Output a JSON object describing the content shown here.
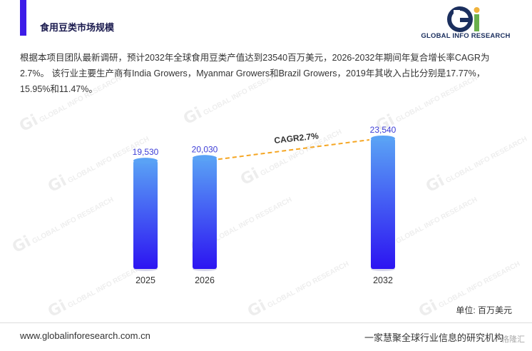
{
  "header": {
    "title": "食用豆类市场规模"
  },
  "logo": {
    "text": "GLOBAL INFO RESEARCH"
  },
  "description": "根据本项目团队最新调研，预计2032年全球食用豆类产值达到23540百万美元，2026-2032年期间年复合增长率CAGR为2.7%。 该行业主要生产商有India Growers，Myanmar Growers和Brazil Growers，2019年其收入占比分别是17.77%，15.95%和11.47%。",
  "colors": {
    "accent": "#3d1ce8",
    "bar_top": "#5aa2f5",
    "bar_bottom": "#2c14f2",
    "cagr_line": "#f5a623",
    "value_label": "#3d3dd6"
  },
  "chart_data": {
    "type": "bar",
    "categories": [
      "2025",
      "2026",
      "2032"
    ],
    "values": [
      19530,
      20030,
      23540
    ],
    "value_labels": [
      "19,530",
      "20,030",
      "23,540"
    ],
    "annotation": "CAGR2.7%",
    "unit": "单位: 百万美元",
    "ylim": [
      0,
      23540
    ],
    "grid": false,
    "legend": "none"
  },
  "footer": {
    "website": "www.globalinforesearch.com.cn",
    "slogan": "一家慧聚全球行业信息的研究机构",
    "badge": "格隆汇"
  }
}
